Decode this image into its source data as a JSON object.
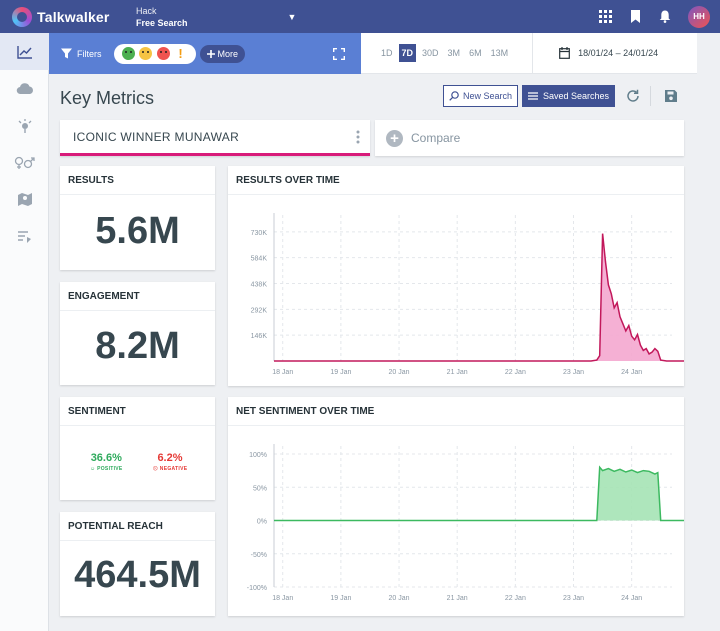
{
  "header": {
    "brand": "Talkwalker",
    "project_label": "Hack",
    "project_name": "Free Search",
    "user_initials": "HH"
  },
  "sidebar": {
    "items": [
      {
        "icon": "trend-chart-icon",
        "active": true
      },
      {
        "icon": "cloud-icon",
        "active": false
      },
      {
        "icon": "influencer-icon",
        "active": false
      },
      {
        "icon": "gender-icon",
        "active": false
      },
      {
        "icon": "map-icon",
        "active": false
      },
      {
        "icon": "themes-icon",
        "active": false
      }
    ]
  },
  "filterbar": {
    "filters_label": "Filters",
    "more_label": "More",
    "sentiment_icons": [
      "positive-face-icon",
      "neutral-face-icon",
      "negative-face-icon",
      "alert-icon"
    ]
  },
  "timebar": {
    "ranges": [
      "1D",
      "7D",
      "30D",
      "3M",
      "6M",
      "13M"
    ],
    "active_range": "7D",
    "date_range": "18/01/24 – 24/01/24"
  },
  "page": {
    "title": "Key Metrics",
    "new_search_label": "New Search",
    "saved_searches_label": "Saved Searches"
  },
  "query": {
    "name": "ICONIC WINNER MUNAWAR",
    "compare_label": "Compare"
  },
  "metrics": {
    "results": {
      "label": "RESULTS",
      "value": "5.6M"
    },
    "engagement": {
      "label": "ENGAGEMENT",
      "value": "8.2M"
    },
    "sentiment": {
      "label": "SENTIMENT",
      "positive_value": "36.6%",
      "positive_label": "POSITIVE",
      "negative_value": "6.2%",
      "negative_label": "NEGATIVE"
    },
    "reach": {
      "label": "POTENTIAL REACH",
      "value": "464.5M"
    }
  },
  "colors": {
    "brand": "#3f5193",
    "filter_bar": "#5a7fd4",
    "results_line": "#c2185b",
    "results_fill": "#f4a7cf",
    "sentiment_line": "#3cb960",
    "sentiment_fill": "#a5e3b5",
    "positive": "#2eaa5c",
    "negative": "#e53935"
  },
  "chart_data": [
    {
      "type": "area",
      "title": "RESULTS OVER TIME",
      "x_ticks": [
        "18 Jan",
        "19 Jan",
        "20 Jan",
        "21 Jan",
        "22 Jan",
        "23 Jan",
        "24 Jan"
      ],
      "y_ticks": [
        "146K",
        "292K",
        "438K",
        "584K",
        "730K"
      ],
      "ylim": [
        0,
        780000
      ],
      "grid": true,
      "series": [
        {
          "x": [
            17.85,
            18,
            19,
            20,
            21,
            22,
            23,
            23.3,
            23.4,
            23.45,
            23.5,
            23.55,
            23.6,
            23.65,
            23.7,
            23.75,
            23.8,
            23.85,
            23.9,
            23.95,
            24,
            24.05,
            24.1,
            24.15,
            24.2,
            24.25,
            24.3,
            24.35,
            24.4,
            24.45,
            24.5,
            24.6,
            24.9
          ],
          "y": [
            0,
            0,
            0,
            0,
            0,
            0,
            0,
            0,
            5000,
            30000,
            720000,
            560000,
            430000,
            380000,
            300000,
            330000,
            250000,
            210000,
            170000,
            200000,
            140000,
            120000,
            150000,
            90000,
            60000,
            70000,
            40000,
            50000,
            70000,
            55000,
            5000,
            0,
            0
          ]
        }
      ]
    },
    {
      "type": "area",
      "title": "NET SENTIMENT OVER TIME",
      "x_ticks": [
        "18 Jan",
        "19 Jan",
        "20 Jan",
        "21 Jan",
        "22 Jan",
        "23 Jan",
        "24 Jan"
      ],
      "y_ticks": [
        "100%",
        "50%",
        "0%",
        "-50%",
        "-100%"
      ],
      "ylim": [
        -100,
        100
      ],
      "grid": true,
      "series": [
        {
          "x": [
            17.85,
            18,
            19,
            20,
            21,
            22,
            23,
            23.35,
            23.4,
            23.45,
            23.5,
            23.6,
            23.7,
            23.8,
            23.9,
            24,
            24.1,
            24.2,
            24.3,
            24.4,
            24.45,
            24.5,
            24.9
          ],
          "y": [
            0,
            0,
            0,
            0,
            0,
            0,
            0,
            0,
            0,
            80,
            75,
            78,
            74,
            77,
            73,
            76,
            72,
            75,
            74,
            70,
            72,
            0,
            0
          ]
        }
      ]
    }
  ]
}
